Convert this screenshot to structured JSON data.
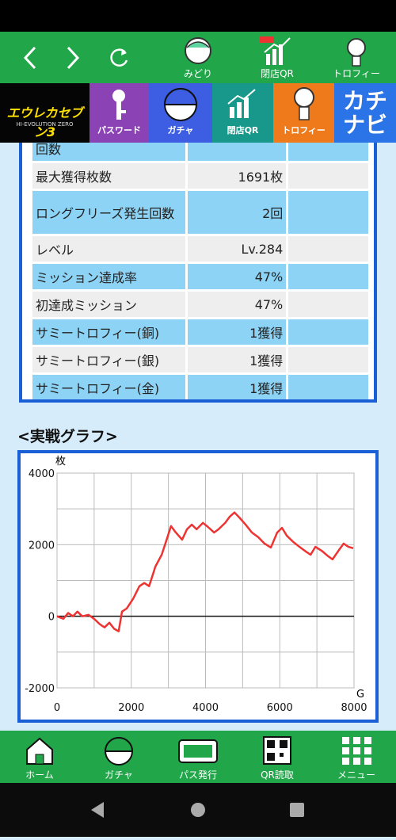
{
  "nav": {
    "items": [
      "みどり",
      "閉店QR",
      "トロフィー"
    ]
  },
  "banner": {
    "logo_title": "エウレカセブン3",
    "logo_subtitle": "HI-EVOLUTION ZERO",
    "items": [
      "パスワード",
      "ガチャ",
      "閉店QR",
      "トロフィー"
    ],
    "kachinavi": "カチナビ"
  },
  "table": {
    "rows": [
      [
        "回数"
      ],
      [
        "最大獲得枚数",
        "1691枚"
      ],
      [
        "ロングフリーズ発生回数",
        "2回"
      ],
      [
        "レベル",
        "Lv.284"
      ],
      [
        "ミッション達成率",
        "47%"
      ],
      [
        "初達成ミッション",
        "47%"
      ],
      [
        "サミートロフィー(銅)",
        "1獲得"
      ],
      [
        "サミートロフィー(銀)",
        "1獲得"
      ],
      [
        "サミートロフィー(金)",
        "1獲得"
      ]
    ]
  },
  "graph_heading": "<実戦グラフ>",
  "chart_data": {
    "type": "line",
    "y_label": "枚",
    "x_label": "G",
    "x": [
      0,
      170,
      300,
      430,
      550,
      680,
      850,
      1020,
      1150,
      1280,
      1410,
      1540,
      1660,
      1750,
      1880,
      2050,
      2220,
      2350,
      2480,
      2650,
      2820,
      2940,
      3070,
      3200,
      3370,
      3500,
      3630,
      3760,
      3930,
      4060,
      4230,
      4350,
      4530,
      4650,
      4780,
      4910,
      5080,
      5250,
      5420,
      5590,
      5760,
      5930,
      6060,
      6190,
      6360,
      6530,
      6700,
      6830,
      6960,
      7130,
      7300,
      7420,
      7600,
      7720,
      7850,
      7980
    ],
    "series": [
      {
        "name": "枚",
        "color": "#ee3333",
        "values": [
          0,
          -70,
          90,
          0,
          130,
          0,
          40,
          -90,
          -220,
          -310,
          -180,
          -350,
          -420,
          130,
          220,
          490,
          840,
          930,
          840,
          1390,
          1720,
          2100,
          2520,
          2340,
          2140,
          2430,
          2560,
          2430,
          2610,
          2500,
          2340,
          2430,
          2610,
          2780,
          2900,
          2760,
          2560,
          2340,
          2210,
          2030,
          1920,
          2340,
          2470,
          2250,
          2080,
          1940,
          1810,
          1720,
          1940,
          1830,
          1680,
          1590,
          1860,
          2030,
          1940,
          1900
        ]
      }
    ],
    "xlim": [
      0,
      8000
    ],
    "ylim": [
      -2000,
      4000
    ],
    "xticks": [
      0,
      2000,
      4000,
      6000,
      8000
    ],
    "yticks": [
      4000,
      2000,
      0,
      -2000
    ],
    "x_minor_ticks": [
      1000,
      3000,
      5000,
      7000
    ],
    "y_minor_ticks": [
      3000,
      1000,
      -1000
    ],
    "grid": true
  },
  "bottom_nav": {
    "items": [
      "ホーム",
      "ガチャ",
      "パス発行",
      "QR読取",
      "メニュー"
    ]
  }
}
